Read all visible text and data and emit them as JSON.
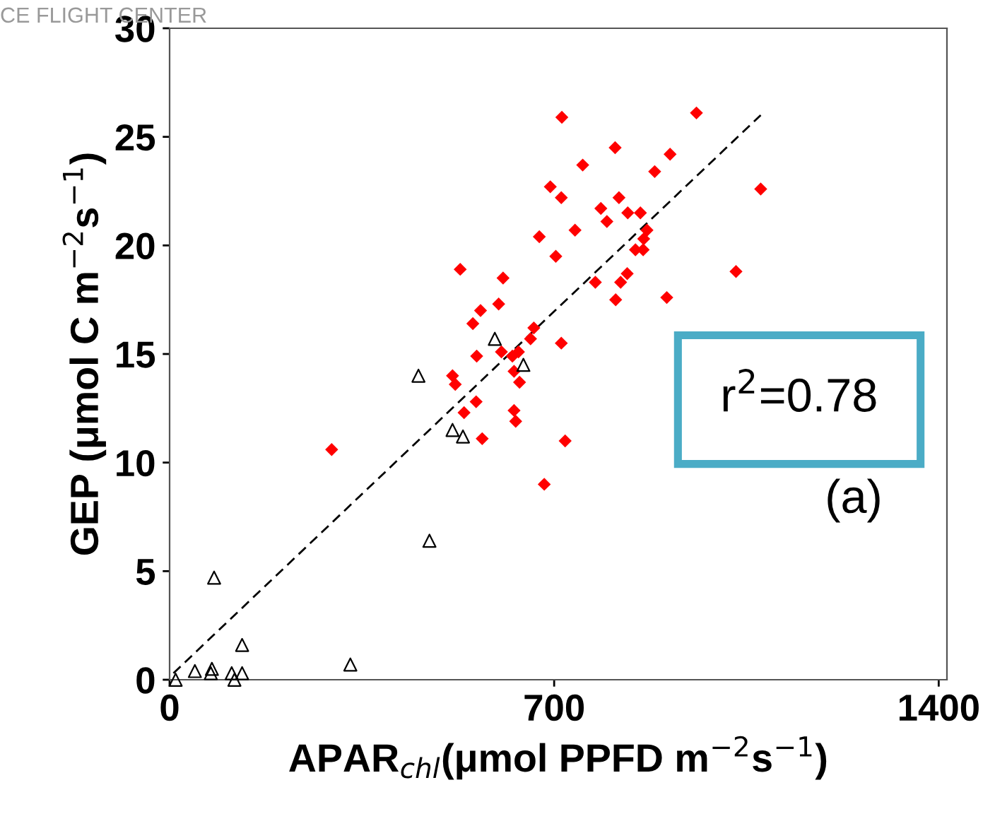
{
  "chart_data": {
    "type": "scatter",
    "xlabel": "APAR$_{chl}$(μmol PPFD m$^{−2}$s$^{−1}$)",
    "ylabel": "GEP (μmol C m$^{−2}$s$^{−1}$)",
    "xlim": [
      0,
      1415
    ],
    "xticks": [
      0,
      700,
      1400
    ],
    "ylim": [
      0,
      30
    ],
    "yticks": [
      0,
      5,
      10,
      15,
      20,
      25,
      30
    ],
    "grid": false,
    "legend": false,
    "annotations": [
      "r$^{2}$=0.78",
      "(a)",
      "CE FLIGHT CENTER"
    ],
    "series": [
      {
        "color": "#ff0000",
        "marker": "diamond",
        "x": [
          714,
          752,
          693,
          713,
          785,
          796,
          673,
          738,
          703,
          529,
          607,
          775,
          599,
          566,
          552,
          663,
          657,
          713,
          604,
          635,
          624,
          559,
          627,
          637,
          515,
          520,
          558,
          536,
          627,
          630,
          569,
          720,
          682,
          295,
          959,
          811,
          911,
          883,
          1076,
          818,
          834,
          857,
          869,
          863,
          848,
          862,
          1031,
          833,
          821,
          812,
          905
        ],
        "values": [
          25.9,
          23.7,
          22.7,
          22.2,
          21.7,
          21.1,
          20.4,
          20.7,
          19.5,
          18.9,
          18.5,
          18.3,
          17.3,
          17.0,
          16.4,
          16.2,
          15.7,
          15.5,
          15.1,
          15.1,
          14.9,
          14.9,
          14.2,
          13.7,
          14.0,
          13.6,
          12.8,
          12.3,
          12.4,
          11.9,
          11.1,
          11.0,
          9.0,
          10.6,
          26.1,
          24.5,
          24.2,
          23.4,
          22.6,
          22.2,
          21.5,
          21.5,
          20.7,
          20.3,
          19.8,
          19.8,
          18.8,
          18.7,
          18.3,
          17.5,
          17.6
        ]
      },
      {
        "color": "#000000",
        "marker": "triangle",
        "x": [
          11,
          46,
          75,
          77,
          113,
          118,
          132,
          132,
          81,
          329,
          473,
          515,
          534,
          453,
          592,
          644
        ],
        "values": [
          0.0,
          0.4,
          0.3,
          0.5,
          0.3,
          0.0,
          0.3,
          1.6,
          4.7,
          0.7,
          6.4,
          11.5,
          11.2,
          14.0,
          15.7,
          14.5
        ]
      },
      {
        "type": "line",
        "color": "#000000",
        "line_style": "dashed",
        "marker": "none",
        "x": [
          7,
          1076
        ],
        "values": [
          0.3,
          26.0
        ]
      }
    ]
  }
}
